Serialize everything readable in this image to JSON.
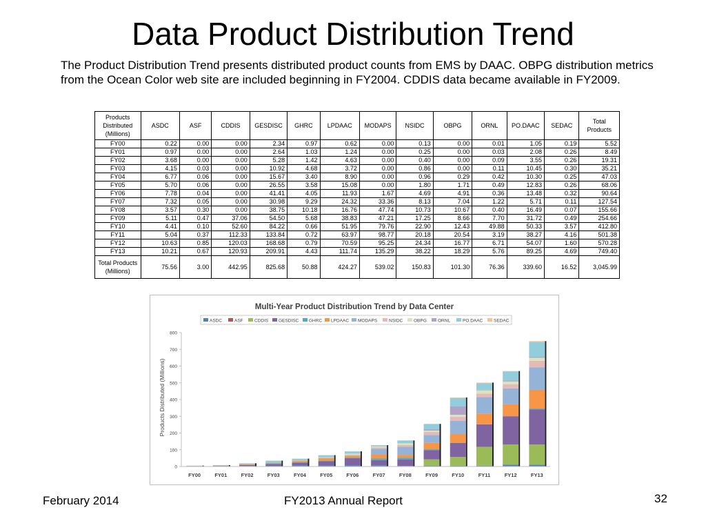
{
  "title": "Data Product Distribution Trend",
  "intro": "The Product Distribution Trend presents distributed product counts from EMS by DAAC.  OBPG distribution metrics from the Ocean Color web site are included beginning in FY2004. CDDIS data became available in FY2009.",
  "table": {
    "row_header": "Products Distributed (Millions)",
    "columns": [
      "ASDC",
      "ASF",
      "CDDIS",
      "GESDISC",
      "GHRC",
      "LPDAAC",
      "MODAPS",
      "NSIDC",
      "OBPG",
      "ORNL",
      "PO.DAAC",
      "SEDAC",
      "Total Products"
    ],
    "rows": [
      {
        "label": "FY00",
        "cells": [
          "0.22",
          "0.00",
          "0.00",
          "2.34",
          "0.97",
          "0.62",
          "0.00",
          "0.13",
          "0.00",
          "0.01",
          "1.05",
          "0.19",
          "5.52"
        ]
      },
      {
        "label": "FY01",
        "cells": [
          "0.97",
          "0.00",
          "0.00",
          "2.64",
          "1.03",
          "1.24",
          "0.00",
          "0.25",
          "0.00",
          "0.03",
          "2.08",
          "0.26",
          "8.49"
        ]
      },
      {
        "label": "FY02",
        "cells": [
          "3.68",
          "0.00",
          "0.00",
          "5.28",
          "1.42",
          "4.63",
          "0.00",
          "0.40",
          "0.00",
          "0.09",
          "3.55",
          "0.26",
          "19.31"
        ]
      },
      {
        "label": "FY03",
        "cells": [
          "4.15",
          "0.03",
          "0.00",
          "10.92",
          "4.68",
          "3.72",
          "0.00",
          "0.86",
          "0.00",
          "0.11",
          "10.45",
          "0.30",
          "35.21"
        ]
      },
      {
        "label": "FY04",
        "cells": [
          "6.77",
          "0.06",
          "0.00",
          "15.67",
          "3.40",
          "8.90",
          "0.00",
          "0.96",
          "0.29",
          "0.42",
          "10.30",
          "0.25",
          "47.03"
        ]
      },
      {
        "label": "FY05",
        "cells": [
          "5.70",
          "0.06",
          "0.00",
          "26.55",
          "3.58",
          "15.08",
          "0.00",
          "1.80",
          "1.71",
          "0.49",
          "12.83",
          "0.26",
          "68.06"
        ]
      },
      {
        "label": "FY06",
        "cells": [
          "7.78",
          "0.04",
          "0.00",
          "41.41",
          "4.05",
          "11.93",
          "1.67",
          "4.69",
          "4.91",
          "0.36",
          "13.48",
          "0.32",
          "90.64"
        ]
      },
      {
        "label": "FY07",
        "cells": [
          "7.32",
          "0.05",
          "0.00",
          "30.98",
          "9.29",
          "24.32",
          "33.36",
          "8.13",
          "7.04",
          "1.22",
          "5.71",
          "0.11",
          "127.54"
        ]
      },
      {
        "label": "FY08",
        "cells": [
          "3.57",
          "0.30",
          "0.00",
          "38.75",
          "10.18",
          "16.76",
          "47.74",
          "10.73",
          "10.67",
          "0.40",
          "16.49",
          "0.07",
          "155.66"
        ]
      },
      {
        "label": "FY09",
        "cells": [
          "5.11",
          "0.47",
          "37.06",
          "54.50",
          "5.68",
          "38.83",
          "47.21",
          "17.25",
          "8.66",
          "7.70",
          "31.72",
          "0.49",
          "254.66"
        ]
      },
      {
        "label": "FY10",
        "cells": [
          "4.41",
          "0.10",
          "52.60",
          "84.22",
          "0.66",
          "51.95",
          "79.76",
          "22.90",
          "12.43",
          "49.88",
          "50.33",
          "3.57",
          "412.80"
        ]
      },
      {
        "label": "FY11",
        "cells": [
          "5.04",
          "0.37",
          "112.33",
          "133.84",
          "0.72",
          "63.97",
          "98.77",
          "20.18",
          "20.54",
          "3.19",
          "38.27",
          "4.16",
          "501.38"
        ]
      },
      {
        "label": "FY12",
        "cells": [
          "10.63",
          "0.85",
          "120.03",
          "168.68",
          "0.79",
          "70.59",
          "95.25",
          "24.34",
          "16.77",
          "6.71",
          "54.07",
          "1.60",
          "570.28"
        ]
      },
      {
        "label": "FY13",
        "cells": [
          "10.21",
          "0.67",
          "120.93",
          "209.91",
          "4.43",
          "111.74",
          "135.29",
          "38.22",
          "18.29",
          "5.76",
          "89.25",
          "4.69",
          "749.40"
        ]
      }
    ],
    "total_row": {
      "label": "Total Products (Millions)",
      "cells": [
        "75.56",
        "3.00",
        "442.95",
        "825.68",
        "50.88",
        "424.27",
        "539.02",
        "150.83",
        "101.30",
        "76.36",
        "339.60",
        "16.52",
        "3,045.99"
      ]
    }
  },
  "chart_data": {
    "type": "bar",
    "stacked": true,
    "title": "Multi-Year Product Distribution Trend by Data Center",
    "xlabel": "",
    "ylabel": "Products Distributed (Millions)",
    "ylim": [
      0,
      800
    ],
    "yticks": [
      0,
      100,
      200,
      300,
      400,
      500,
      600,
      700,
      800
    ],
    "grid": false,
    "legend_position": "top",
    "categories": [
      "FY00",
      "FY01",
      "FY02",
      "FY03",
      "FY04",
      "FY05",
      "FY06",
      "FY07",
      "FY08",
      "FY09",
      "FY10",
      "FY11",
      "FY12",
      "FY13"
    ],
    "series": [
      {
        "name": "ASDC",
        "color": "#4f81bd",
        "values": [
          0.22,
          0.97,
          3.68,
          4.15,
          6.77,
          5.7,
          7.78,
          7.32,
          3.57,
          5.11,
          4.41,
          5.04,
          10.63,
          10.21
        ]
      },
      {
        "name": "ASF",
        "color": "#c0504d",
        "values": [
          0.0,
          0.0,
          0.0,
          0.03,
          0.06,
          0.06,
          0.04,
          0.05,
          0.3,
          0.47,
          0.1,
          0.37,
          0.85,
          0.67
        ]
      },
      {
        "name": "CDDIS",
        "color": "#9bbb59",
        "values": [
          0.0,
          0.0,
          0.0,
          0.0,
          0.0,
          0.0,
          0.0,
          0.0,
          0.0,
          37.06,
          52.6,
          112.33,
          120.03,
          120.93
        ]
      },
      {
        "name": "GESDISC",
        "color": "#8064a2",
        "values": [
          2.34,
          2.64,
          5.28,
          10.92,
          15.67,
          26.55,
          41.41,
          30.98,
          38.75,
          54.5,
          84.22,
          133.84,
          168.68,
          209.91
        ]
      },
      {
        "name": "GHRC",
        "color": "#4bacc6",
        "values": [
          0.97,
          1.03,
          1.42,
          4.68,
          3.4,
          3.58,
          4.05,
          9.29,
          10.18,
          5.68,
          0.66,
          0.72,
          0.79,
          4.43
        ]
      },
      {
        "name": "LPDAAC",
        "color": "#f79646",
        "values": [
          0.62,
          1.24,
          4.63,
          3.72,
          8.9,
          15.08,
          11.93,
          24.32,
          16.76,
          38.83,
          51.95,
          63.97,
          70.59,
          111.74
        ]
      },
      {
        "name": "MODAPS",
        "color": "#95b3d7",
        "values": [
          0.0,
          0.0,
          0.0,
          0.0,
          0.0,
          0.0,
          1.67,
          33.36,
          47.74,
          47.21,
          79.76,
          98.77,
          95.25,
          135.29
        ]
      },
      {
        "name": "NSIDC",
        "color": "#e6b9b8",
        "values": [
          0.13,
          0.25,
          0.4,
          0.86,
          0.96,
          1.8,
          4.69,
          8.13,
          10.73,
          17.25,
          22.9,
          20.18,
          24.34,
          38.22
        ]
      },
      {
        "name": "OBPG",
        "color": "#d7e4bd",
        "values": [
          0.0,
          0.0,
          0.0,
          0.0,
          0.29,
          1.71,
          4.91,
          7.04,
          10.67,
          8.66,
          12.43,
          20.54,
          16.77,
          18.29
        ]
      },
      {
        "name": "ORNL",
        "color": "#b3a2c7",
        "values": [
          0.01,
          0.03,
          0.09,
          0.11,
          0.42,
          0.49,
          0.36,
          1.22,
          0.4,
          7.7,
          49.88,
          3.19,
          6.71,
          5.76
        ]
      },
      {
        "name": "PO.DAAC",
        "color": "#92cddc",
        "values": [
          1.05,
          2.08,
          3.55,
          10.45,
          10.3,
          12.83,
          13.48,
          5.71,
          16.49,
          31.72,
          50.33,
          38.27,
          54.07,
          89.25
        ]
      },
      {
        "name": "SEDAC",
        "color": "#fac090",
        "values": [
          0.19,
          0.26,
          0.26,
          0.3,
          0.25,
          0.26,
          0.32,
          0.11,
          0.07,
          0.49,
          3.57,
          4.16,
          1.6,
          4.69
        ]
      }
    ]
  },
  "footer": {
    "date": "February 2014",
    "report": "FY2013 Annual Report",
    "page": "32"
  }
}
